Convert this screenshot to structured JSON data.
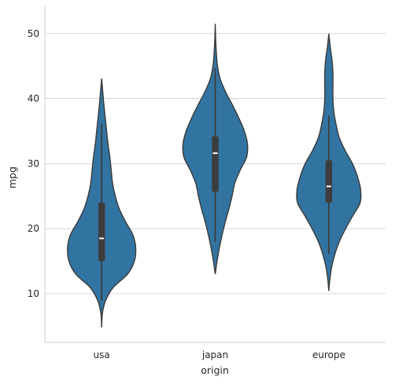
{
  "chart_data": {
    "type": "violin",
    "xlabel": "origin",
    "ylabel": "mpg",
    "ylim": [
      2.5,
      54.2
    ],
    "yticks": [
      10,
      20,
      30,
      40,
      50
    ],
    "grid": "horizontal",
    "categories": [
      "usa",
      "japan",
      "europe"
    ],
    "colors": {
      "violin": "#3274a1",
      "box": "#3d3d3d",
      "median": "#ffffff"
    },
    "violins": [
      {
        "category": "usa",
        "y": [
          4.8,
          7,
          9,
          11,
          13,
          15,
          17,
          19,
          21,
          23,
          25,
          27,
          29,
          31,
          33,
          35,
          37,
          39,
          41,
          43.1
        ],
        "half_width": [
          0.0,
          0.017,
          0.09,
          0.26,
          0.57,
          0.72,
          0.75,
          0.69,
          0.53,
          0.39,
          0.3,
          0.24,
          0.21,
          0.18,
          0.14,
          0.11,
          0.08,
          0.05,
          0.025,
          0.0
        ],
        "whisker": [
          9.0,
          36.0
        ],
        "q1": 15.0,
        "q3": 24.0,
        "median": 18.5
      },
      {
        "category": "japan",
        "y": [
          13,
          15,
          17,
          19,
          21,
          23,
          25,
          27,
          29,
          31,
          33,
          35,
          37,
          39,
          41,
          43,
          45,
          47,
          49,
          51.5
        ],
        "half_width": [
          0.0,
          0.04,
          0.09,
          0.15,
          0.22,
          0.3,
          0.37,
          0.43,
          0.55,
          0.69,
          0.71,
          0.64,
          0.52,
          0.38,
          0.23,
          0.11,
          0.05,
          0.025,
          0.01,
          0.0
        ],
        "whisker": [
          18.0,
          44.6
        ],
        "q1": 25.7,
        "q3": 34.2,
        "median": 31.6
      },
      {
        "category": "europe",
        "y": [
          10.4,
          12,
          14,
          16,
          18,
          20,
          22,
          24,
          26,
          28,
          30,
          32,
          34,
          36,
          38,
          40,
          42,
          44,
          46,
          48,
          50
        ],
        "half_width": [
          0.0,
          0.02,
          0.06,
          0.13,
          0.23,
          0.37,
          0.53,
          0.69,
          0.7,
          0.63,
          0.52,
          0.36,
          0.23,
          0.16,
          0.11,
          0.09,
          0.09,
          0.09,
          0.07,
          0.03,
          0.0
        ],
        "whisker": [
          16.2,
          37.3
        ],
        "q1": 24.0,
        "q3": 30.5,
        "median": 26.5
      }
    ]
  }
}
